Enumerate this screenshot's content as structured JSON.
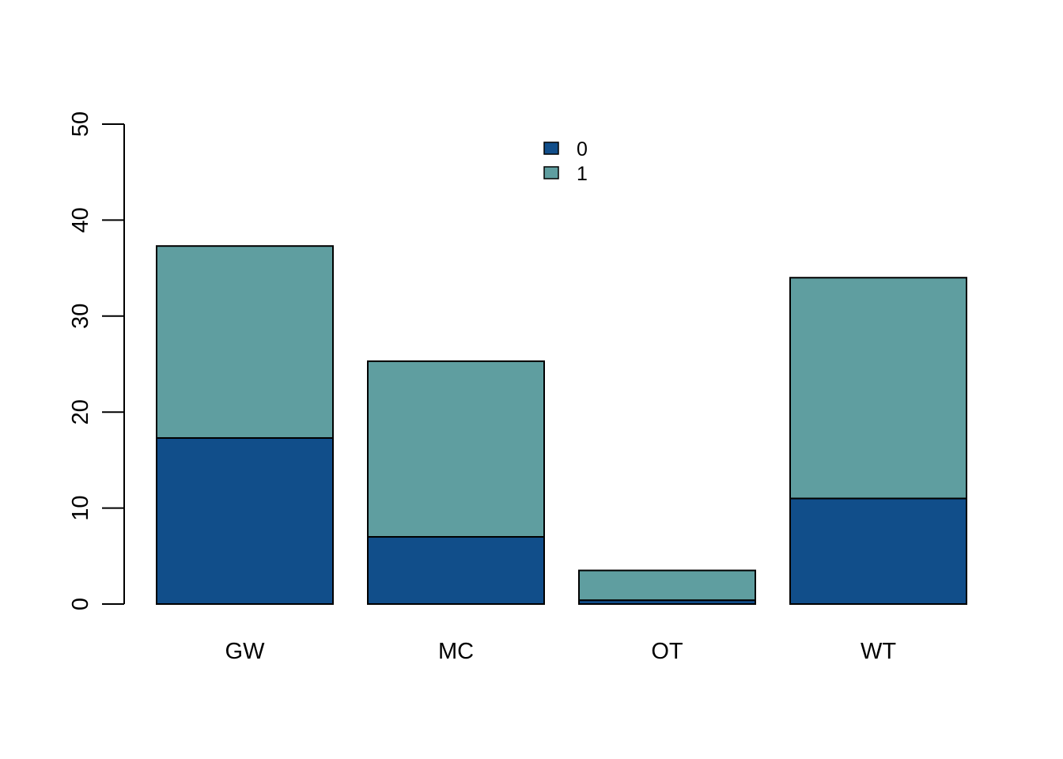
{
  "chart_data": {
    "type": "bar",
    "stacked": true,
    "categories": [
      "GW",
      "MC",
      "OT",
      "WT"
    ],
    "series": [
      {
        "name": "0",
        "values": [
          17.3,
          7.0,
          0.4,
          11.0
        ],
        "color": "#114E8A"
      },
      {
        "name": "1",
        "values": [
          20.0,
          18.3,
          3.1,
          23.0
        ],
        "color": "#5F9EA0"
      }
    ],
    "title": "",
    "xlabel": "",
    "ylabel": "",
    "ylim": [
      0,
      50
    ],
    "yticks": [
      0,
      10,
      20,
      30,
      40,
      50
    ],
    "grid": false,
    "legend_position": "top-center"
  }
}
